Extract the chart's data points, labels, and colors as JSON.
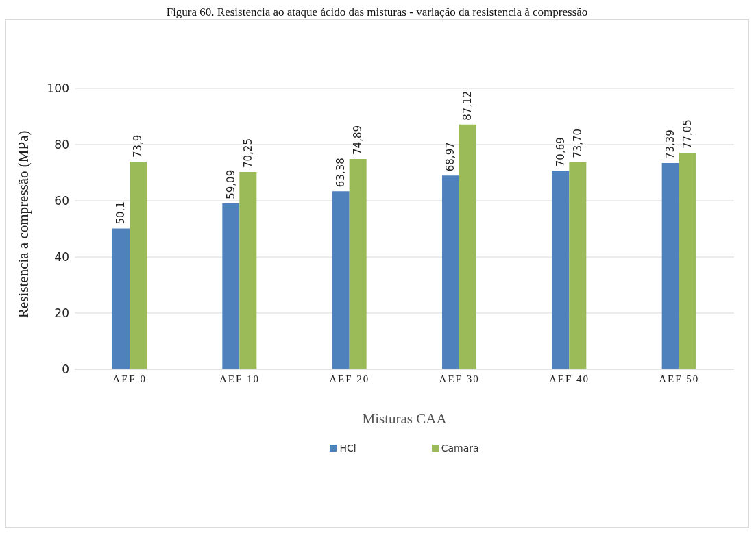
{
  "chart_data": {
    "type": "bar",
    "title": "Figura 60. Resistencia ao ataque ácido das misturas - variação da resistencia à compressão",
    "xlabel": "Misturas CAA",
    "ylabel": "Resistencia a compressão (MPa)",
    "categories": [
      "AEF 0",
      "AEF 10",
      "AEF 20",
      "AEF 30",
      "AEF 40",
      "AEF 50"
    ],
    "series": [
      {
        "name": "HCl",
        "color": "#4f81bd",
        "values": [
          50.1,
          59.09,
          63.38,
          68.97,
          70.69,
          73.39
        ],
        "value_labels": [
          "50,1",
          "59,09",
          "63,38",
          "68,97",
          "70,69",
          "73,39"
        ]
      },
      {
        "name": "Camara",
        "color": "#9bbb59",
        "values": [
          73.9,
          70.25,
          74.89,
          87.12,
          73.7,
          77.05
        ],
        "value_labels": [
          "73,9",
          "70,25",
          "74,89",
          "87,12",
          "73,70",
          "77,05"
        ]
      }
    ],
    "ylim": [
      0,
      100
    ],
    "yticks": [
      0,
      20,
      40,
      60,
      80,
      100
    ],
    "grid": "y",
    "legend": "bottom"
  }
}
